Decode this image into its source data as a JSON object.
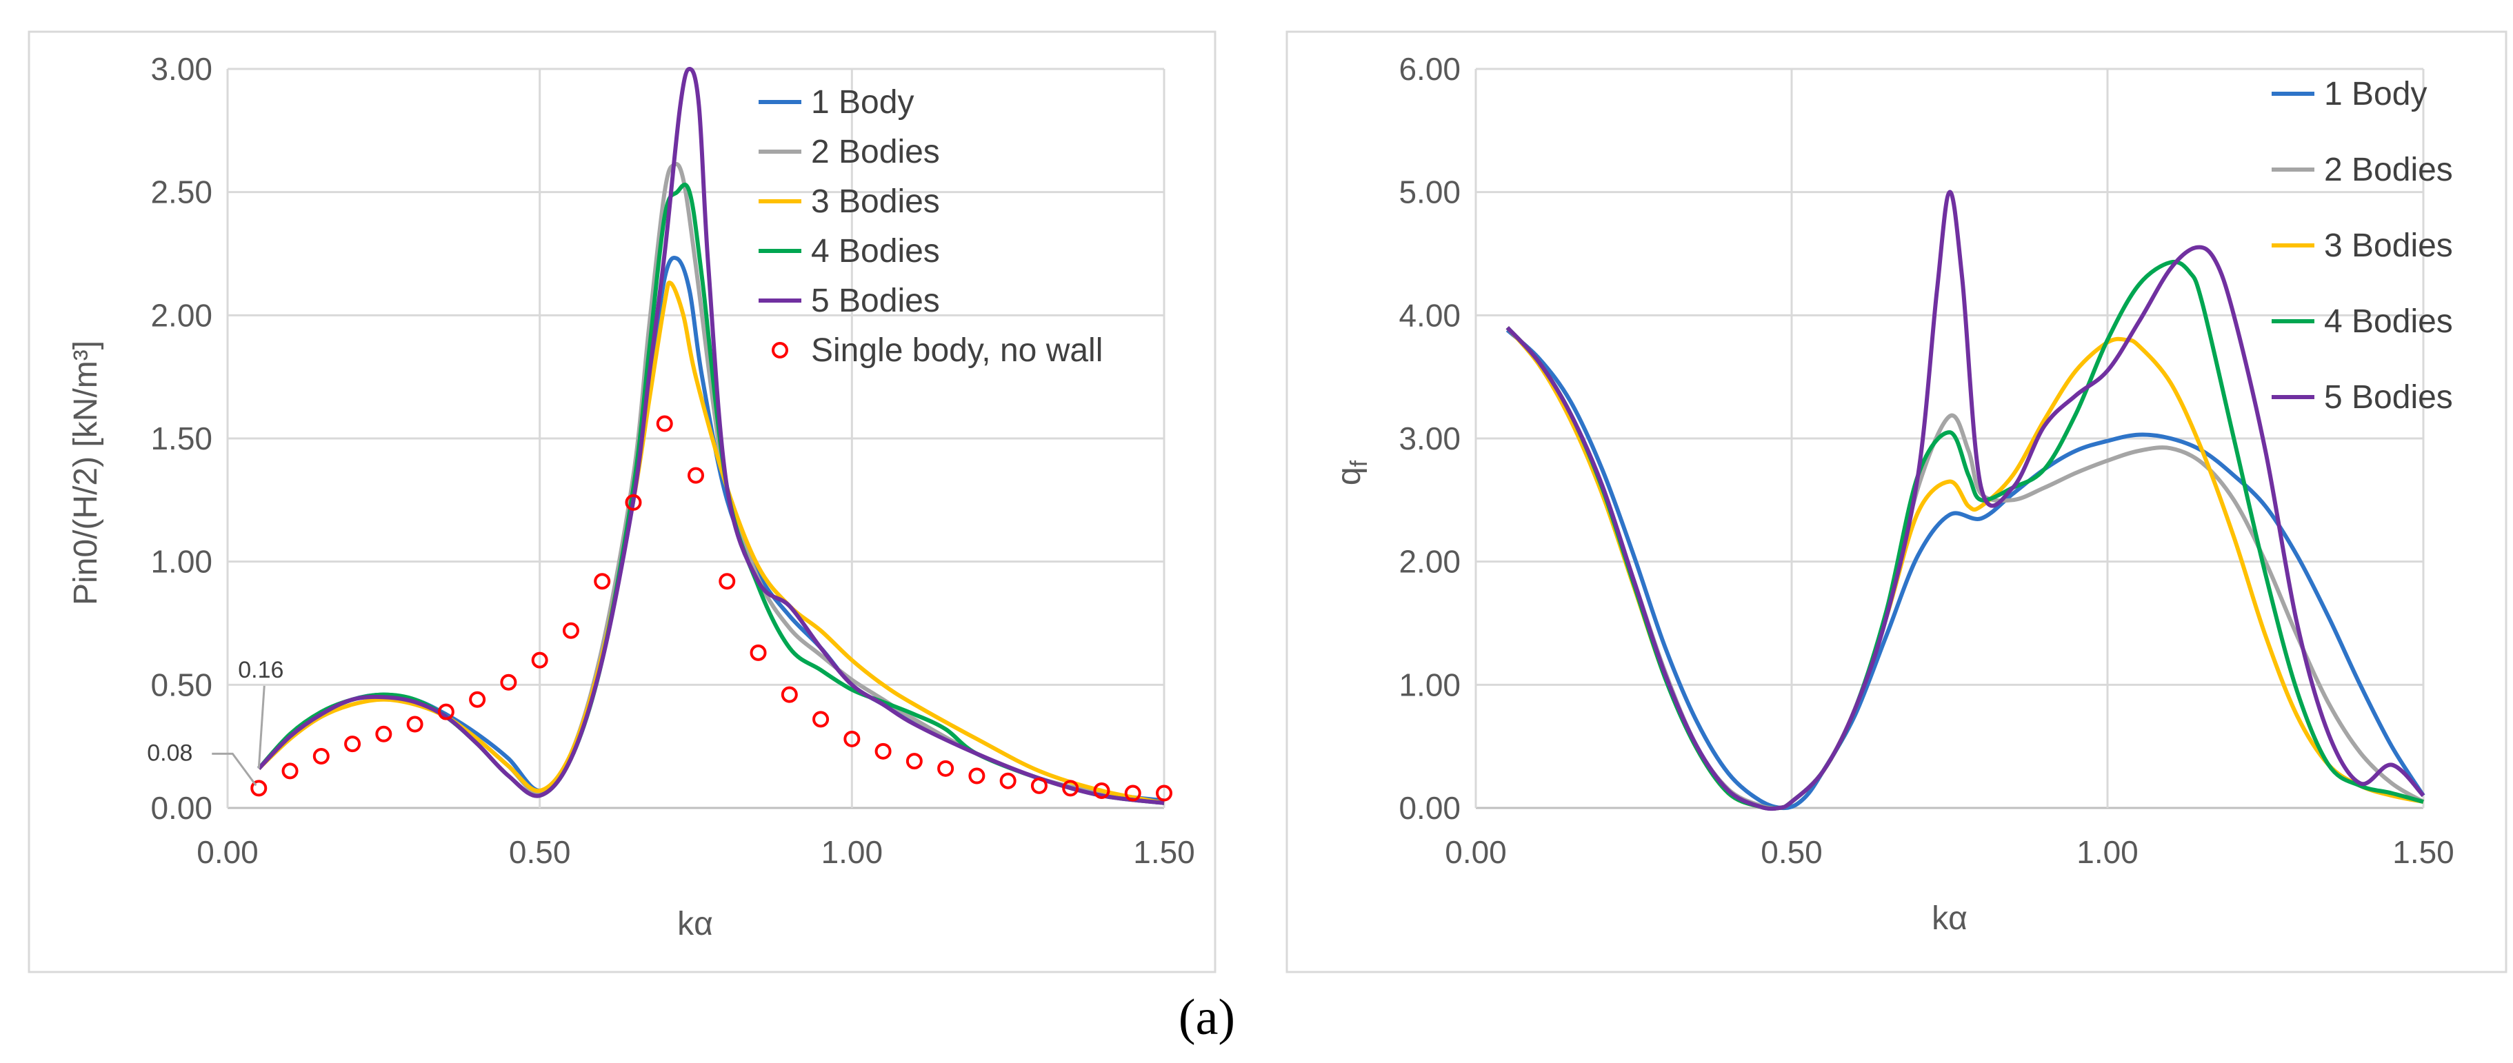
{
  "caption": "(a)",
  "chart_data": [
    {
      "type": "line",
      "id": "left",
      "xlabel": "kα",
      "ylabel": "Pin0/(H/2)  [kN/m³]",
      "xlim": [
        0,
        1.5
      ],
      "ylim": [
        0,
        3
      ],
      "xticks": [
        0,
        0.5,
        1.0,
        1.5
      ],
      "xtick_labels": [
        "0.00",
        "0.50",
        "1.00",
        "1.50"
      ],
      "yticks": [
        0,
        0.5,
        1.0,
        1.5,
        2.0,
        2.5,
        3.0
      ],
      "ytick_labels": [
        "0.00",
        "0.50",
        "1.00",
        "1.50",
        "2.00",
        "2.50",
        "3.00"
      ],
      "grid": true,
      "legend": "top-right",
      "annotations": [
        {
          "text": "0.16",
          "x": 0.05,
          "y": 0.16
        },
        {
          "text": "0.08",
          "x": 0.05,
          "y": 0.08
        }
      ],
      "series": [
        {
          "name": "1 Body",
          "color": "#2E74C8",
          "x": [
            0.05,
            0.1,
            0.15,
            0.2,
            0.25,
            0.3,
            0.35,
            0.4,
            0.45,
            0.5,
            0.55,
            0.6,
            0.65,
            0.675,
            0.7,
            0.72,
            0.74,
            0.76,
            0.8,
            0.85,
            0.9,
            0.95,
            1.0,
            1.05,
            1.1,
            1.2,
            1.3,
            1.4,
            1.5
          ],
          "y": [
            0.16,
            0.29,
            0.38,
            0.44,
            0.46,
            0.44,
            0.38,
            0.3,
            0.2,
            0.07,
            0.2,
            0.6,
            1.25,
            1.7,
            2.15,
            2.23,
            2.1,
            1.75,
            1.25,
            0.95,
            0.78,
            0.65,
            0.5,
            0.42,
            0.35,
            0.22,
            0.12,
            0.06,
            0.03
          ]
        },
        {
          "name": "2 Bodies",
          "color": "#A5A5A5",
          "x": [
            0.05,
            0.1,
            0.15,
            0.2,
            0.25,
            0.3,
            0.35,
            0.4,
            0.45,
            0.5,
            0.55,
            0.6,
            0.65,
            0.675,
            0.7,
            0.715,
            0.73,
            0.75,
            0.78,
            0.8,
            0.85,
            0.9,
            0.95,
            1.0,
            1.05,
            1.1,
            1.2,
            1.3,
            1.4,
            1.5
          ],
          "y": [
            0.16,
            0.29,
            0.38,
            0.44,
            0.45,
            0.43,
            0.37,
            0.28,
            0.17,
            0.06,
            0.22,
            0.65,
            1.35,
            1.95,
            2.5,
            2.61,
            2.55,
            2.2,
            1.6,
            1.3,
            0.93,
            0.73,
            0.62,
            0.52,
            0.44,
            0.36,
            0.22,
            0.12,
            0.06,
            0.02
          ]
        },
        {
          "name": "3 Bodies",
          "color": "#FFC000",
          "x": [
            0.05,
            0.1,
            0.15,
            0.2,
            0.25,
            0.3,
            0.35,
            0.4,
            0.45,
            0.5,
            0.55,
            0.6,
            0.65,
            0.675,
            0.7,
            0.71,
            0.73,
            0.75,
            0.8,
            0.85,
            0.9,
            0.95,
            1.0,
            1.05,
            1.1,
            1.2,
            1.3,
            1.4,
            1.5
          ],
          "y": [
            0.16,
            0.28,
            0.37,
            0.42,
            0.44,
            0.42,
            0.37,
            0.28,
            0.17,
            0.07,
            0.22,
            0.62,
            1.25,
            1.65,
            2.05,
            2.13,
            2.0,
            1.75,
            1.3,
            0.98,
            0.82,
            0.72,
            0.6,
            0.5,
            0.42,
            0.28,
            0.15,
            0.07,
            0.02
          ]
        },
        {
          "name": "4 Bodies",
          "color": "#00A651",
          "x": [
            0.05,
            0.1,
            0.15,
            0.2,
            0.25,
            0.3,
            0.35,
            0.4,
            0.45,
            0.5,
            0.55,
            0.6,
            0.65,
            0.675,
            0.7,
            0.72,
            0.74,
            0.76,
            0.8,
            0.85,
            0.9,
            0.95,
            1.0,
            1.05,
            1.1,
            1.15,
            1.2,
            1.3,
            1.4,
            1.5
          ],
          "y": [
            0.16,
            0.3,
            0.39,
            0.44,
            0.46,
            0.44,
            0.37,
            0.26,
            0.13,
            0.05,
            0.2,
            0.6,
            1.3,
            1.85,
            2.4,
            2.5,
            2.5,
            2.15,
            1.3,
            0.9,
            0.65,
            0.56,
            0.48,
            0.43,
            0.38,
            0.32,
            0.22,
            0.12,
            0.05,
            0.02
          ]
        },
        {
          "name": "5 Bodies",
          "color": "#7030A0",
          "x": [
            0.05,
            0.1,
            0.15,
            0.2,
            0.25,
            0.3,
            0.35,
            0.4,
            0.45,
            0.5,
            0.55,
            0.6,
            0.65,
            0.675,
            0.7,
            0.725,
            0.74,
            0.755,
            0.77,
            0.8,
            0.85,
            0.9,
            0.95,
            1.0,
            1.05,
            1.1,
            1.2,
            1.3,
            1.4,
            1.5
          ],
          "y": [
            0.16,
            0.29,
            0.38,
            0.44,
            0.45,
            0.43,
            0.37,
            0.26,
            0.13,
            0.05,
            0.2,
            0.6,
            1.25,
            1.75,
            2.25,
            2.85,
            3.0,
            2.85,
            2.2,
            1.3,
            0.92,
            0.82,
            0.65,
            0.5,
            0.42,
            0.34,
            0.22,
            0.12,
            0.05,
            0.02
          ]
        }
      ],
      "scatter": {
        "name": "Single body, no wall",
        "color": "#FF0000",
        "x": [
          0.05,
          0.1,
          0.15,
          0.2,
          0.25,
          0.3,
          0.35,
          0.4,
          0.45,
          0.5,
          0.55,
          0.6,
          0.65,
          0.7,
          0.75,
          0.8,
          0.85,
          0.9,
          0.95,
          1.0,
          1.05,
          1.1,
          1.15,
          1.2,
          1.25,
          1.3,
          1.35,
          1.4,
          1.45,
          1.5
        ],
        "y": [
          0.08,
          0.15,
          0.21,
          0.26,
          0.3,
          0.34,
          0.39,
          0.44,
          0.51,
          0.6,
          0.72,
          0.92,
          1.24,
          1.56,
          1.35,
          0.92,
          0.63,
          0.46,
          0.36,
          0.28,
          0.23,
          0.19,
          0.16,
          0.13,
          0.11,
          0.09,
          0.08,
          0.07,
          0.06,
          0.06
        ]
      }
    },
    {
      "type": "line",
      "id": "right",
      "xlabel": "kα",
      "ylabel": "qf",
      "ylabel_main": "q",
      "ylabel_sub": "f",
      "xlim": [
        0,
        1.5
      ],
      "ylim": [
        0,
        6
      ],
      "xticks": [
        0,
        0.5,
        1.0,
        1.5
      ],
      "xtick_labels": [
        "0.00",
        "0.50",
        "1.00",
        "1.50"
      ],
      "yticks": [
        0,
        1,
        2,
        3,
        4,
        5,
        6
      ],
      "ytick_labels": [
        "0.00",
        "1.00",
        "2.00",
        "3.00",
        "4.00",
        "5.00",
        "6.00"
      ],
      "grid": true,
      "legend": "top-right",
      "series": [
        {
          "name": "1 Body",
          "color": "#2E74C8",
          "x": [
            0.05,
            0.1,
            0.15,
            0.2,
            0.25,
            0.3,
            0.35,
            0.4,
            0.45,
            0.49,
            0.52,
            0.55,
            0.6,
            0.65,
            0.7,
            0.75,
            0.8,
            0.85,
            0.9,
            0.95,
            1.0,
            1.05,
            1.1,
            1.15,
            1.2,
            1.25,
            1.3,
            1.35,
            1.4,
            1.45,
            1.5
          ],
          "y": [
            3.88,
            3.65,
            3.3,
            2.75,
            2.05,
            1.3,
            0.7,
            0.28,
            0.06,
            0.0,
            0.08,
            0.3,
            0.75,
            1.4,
            2.05,
            2.38,
            2.35,
            2.55,
            2.75,
            2.9,
            2.98,
            3.03,
            3.0,
            2.9,
            2.7,
            2.45,
            2.05,
            1.55,
            1.0,
            0.5,
            0.1
          ]
        },
        {
          "name": "2 Bodies",
          "color": "#A5A5A5",
          "x": [
            0.05,
            0.1,
            0.15,
            0.2,
            0.25,
            0.3,
            0.35,
            0.4,
            0.45,
            0.48,
            0.5,
            0.55,
            0.6,
            0.65,
            0.7,
            0.75,
            0.78,
            0.8,
            0.85,
            0.9,
            0.95,
            1.0,
            1.05,
            1.1,
            1.15,
            1.2,
            1.25,
            1.3,
            1.35,
            1.4,
            1.45,
            1.5
          ],
          "y": [
            3.9,
            3.62,
            3.2,
            2.6,
            1.85,
            1.1,
            0.5,
            0.15,
            0.02,
            0.0,
            0.05,
            0.3,
            0.8,
            1.55,
            2.6,
            3.18,
            2.9,
            2.55,
            2.5,
            2.6,
            2.72,
            2.82,
            2.9,
            2.92,
            2.8,
            2.5,
            2.0,
            1.4,
            0.85,
            0.45,
            0.2,
            0.05
          ]
        },
        {
          "name": "3 Bodies",
          "color": "#FFC000",
          "x": [
            0.05,
            0.1,
            0.15,
            0.2,
            0.25,
            0.3,
            0.35,
            0.4,
            0.45,
            0.48,
            0.5,
            0.55,
            0.6,
            0.65,
            0.7,
            0.75,
            0.78,
            0.8,
            0.85,
            0.9,
            0.95,
            1.0,
            1.03,
            1.05,
            1.1,
            1.15,
            1.2,
            1.25,
            1.3,
            1.35,
            1.4,
            1.45,
            1.5
          ],
          "y": [
            3.9,
            3.6,
            3.15,
            2.55,
            1.8,
            1.05,
            0.48,
            0.12,
            0.01,
            0.0,
            0.05,
            0.3,
            0.8,
            1.55,
            2.4,
            2.65,
            2.45,
            2.45,
            2.7,
            3.15,
            3.55,
            3.78,
            3.8,
            3.75,
            3.45,
            2.9,
            2.2,
            1.4,
            0.75,
            0.35,
            0.18,
            0.1,
            0.05
          ]
        },
        {
          "name": "4 Bodies",
          "color": "#00A651",
          "x": [
            0.05,
            0.1,
            0.15,
            0.2,
            0.25,
            0.3,
            0.35,
            0.4,
            0.45,
            0.48,
            0.5,
            0.55,
            0.6,
            0.65,
            0.7,
            0.75,
            0.78,
            0.8,
            0.85,
            0.9,
            0.95,
            1.0,
            1.05,
            1.1,
            1.13,
            1.15,
            1.2,
            1.25,
            1.3,
            1.35,
            1.4,
            1.45,
            1.5
          ],
          "y": [
            3.9,
            3.62,
            3.2,
            2.6,
            1.82,
            1.05,
            0.48,
            0.12,
            0.01,
            0.0,
            0.05,
            0.3,
            0.8,
            1.6,
            2.7,
            3.05,
            2.7,
            2.5,
            2.6,
            2.75,
            3.2,
            3.8,
            4.25,
            4.43,
            4.35,
            4.1,
            3.0,
            1.9,
            0.95,
            0.35,
            0.18,
            0.12,
            0.05
          ]
        },
        {
          "name": "5 Bodies",
          "color": "#7030A0",
          "x": [
            0.05,
            0.1,
            0.15,
            0.2,
            0.25,
            0.3,
            0.35,
            0.4,
            0.45,
            0.48,
            0.5,
            0.55,
            0.6,
            0.65,
            0.7,
            0.73,
            0.75,
            0.77,
            0.8,
            0.85,
            0.9,
            0.95,
            1.0,
            1.05,
            1.1,
            1.14,
            1.17,
            1.2,
            1.25,
            1.3,
            1.35,
            1.4,
            1.45,
            1.5
          ],
          "y": [
            3.9,
            3.62,
            3.2,
            2.62,
            1.85,
            1.08,
            0.5,
            0.14,
            0.01,
            0.0,
            0.05,
            0.3,
            0.8,
            1.55,
            2.7,
            4.2,
            5.0,
            4.3,
            2.6,
            2.6,
            3.1,
            3.35,
            3.55,
            3.95,
            4.38,
            4.55,
            4.45,
            4.0,
            2.9,
            1.5,
            0.6,
            0.2,
            0.35,
            0.1
          ]
        }
      ]
    }
  ]
}
